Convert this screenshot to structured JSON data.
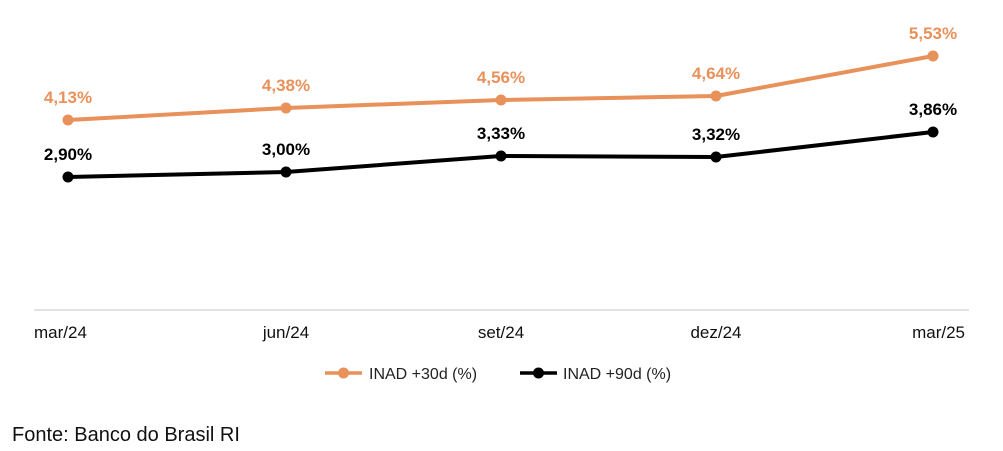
{
  "chart_data": {
    "type": "line",
    "categories": [
      "mar/24",
      "jun/24",
      "set/24",
      "dez/24",
      "mar/25"
    ],
    "series": [
      {
        "name": "INAD +30d (%)",
        "color": "#E8915A",
        "values": [
          4.13,
          4.38,
          4.56,
          4.64,
          5.53
        ],
        "labels": [
          "4,13%",
          "4,38%",
          "4,56%",
          "4,64%",
          "5,53%"
        ]
      },
      {
        "name": "INAD +90d (%)",
        "color": "#000000",
        "values": [
          2.9,
          3.0,
          3.33,
          3.32,
          3.86
        ],
        "labels": [
          "2,90%",
          "3,00%",
          "3,33%",
          "3,32%",
          "3,86%"
        ]
      }
    ],
    "ylim": [
      0,
      6
    ],
    "grid": false,
    "legend_position": "bottom-center",
    "title": "",
    "xlabel": "",
    "ylabel": ""
  },
  "source": "Fonte: Banco do Brasil RI"
}
